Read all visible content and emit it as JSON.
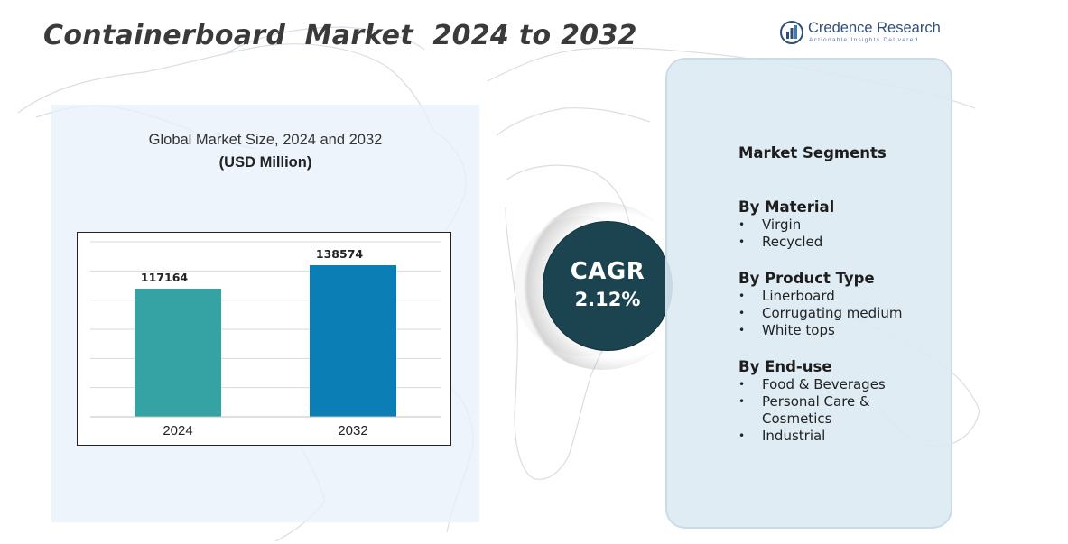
{
  "title": "Containerboard  Market  2024 to 2032",
  "brand": {
    "name": "Credence Research",
    "tagline": "Actionable Insights Delivered",
    "icon": "bar-chart-logo-icon",
    "color": "#2f4f7a"
  },
  "chart": {
    "subtitle": "Global Market Size, 2024 and 2032",
    "units": "(USD Million)"
  },
  "chart_data": {
    "type": "bar",
    "categories": [
      "2024",
      "2032"
    ],
    "values": [
      117164,
      138574
    ],
    "data_labels": [
      "117164",
      "138574"
    ],
    "colors": [
      "#35a3a3",
      "#0a7eb5"
    ],
    "ylim": [
      0,
      160000
    ],
    "grid": true,
    "title": "",
    "xlabel": "",
    "ylabel": ""
  },
  "cagr": {
    "label": "CAGR",
    "value": "2.12%"
  },
  "segments": {
    "title": "Market Segments",
    "groups": [
      {
        "heading": "By Material",
        "items": [
          "Virgin",
          "Recycled"
        ]
      },
      {
        "heading": "By Product Type",
        "items": [
          "Linerboard",
          "Corrugating medium",
          "White tops"
        ]
      },
      {
        "heading": "By End-use",
        "items": [
          "Food & Beverages",
          "Personal Care & Cosmetics",
          "Industrial"
        ]
      }
    ],
    "bullet": "•"
  },
  "colors": {
    "panel": "#e8f1fa",
    "cagr_circle": "#1c4450",
    "segments_panel": "#dceaf3"
  }
}
